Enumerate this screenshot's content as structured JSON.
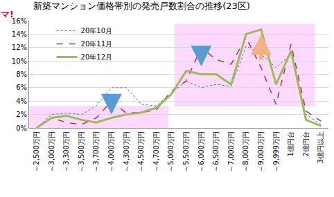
{
  "chart_data": {
    "type": "line",
    "title": "新築マンション価格帯別の発売戸数割合の推移(23区)",
    "annotations": [
      "マ!"
    ],
    "categories": [
      "～2,500万円",
      "～3,000万円",
      "～3,300万円",
      "～3,500万円",
      "～3,700万円",
      "～4,000万円",
      "～4,300万円",
      "～4,500万円",
      "～4,700万円",
      "～5,000万円",
      "～5,500万円",
      "～6,000万円",
      "～6,500万円",
      "～7,000万円",
      "～8,000万円",
      "～9,000万円",
      "～9,999万円",
      "1億円台",
      "2億円台",
      "3億円以上"
    ],
    "series": [
      {
        "name": "20年10月",
        "color": "#4472c4",
        "line_style": "dot",
        "values": [
          0,
          2.0,
          2.2,
          2.0,
          3.3,
          6.0,
          6.0,
          3.5,
          3.3,
          5.2,
          7.0,
          6.0,
          6.5,
          6.2,
          12.2,
          11.0,
          9.0,
          11.0,
          2.0,
          0.5
        ]
      },
      {
        "name": "20年11月",
        "color": "#c0304a",
        "line_style": "dash",
        "values": [
          0,
          1.5,
          0.8,
          0.5,
          1.5,
          4.0,
          2.2,
          2.3,
          2.7,
          5.5,
          7.0,
          12.0,
          10.2,
          9.5,
          13.5,
          9.0,
          3.5,
          12.5,
          2.5,
          1.0
        ]
      },
      {
        "name": "20年12月",
        "color": "#9bbb59",
        "line_style": "solid",
        "values": [
          0,
          1.5,
          1.8,
          1.2,
          0.8,
          1.5,
          2.0,
          2.3,
          3.0,
          5.0,
          8.5,
          8.0,
          8.0,
          6.5,
          14.0,
          14.7,
          6.5,
          11.5,
          1.2,
          0.3
        ]
      }
    ],
    "ylim": [
      0,
      16
    ],
    "yticks": [
      {
        "value": 0,
        "label": "0%"
      },
      {
        "value": 2,
        "label": "2%"
      },
      {
        "value": 4,
        "label": "4%"
      },
      {
        "value": 6,
        "label": "6%"
      },
      {
        "value": 8,
        "label": "8%"
      },
      {
        "value": 10,
        "label": "10%"
      },
      {
        "value": 12,
        "label": "12%"
      },
      {
        "value": 14,
        "label": "14%"
      },
      {
        "value": 16,
        "label": "16%"
      }
    ],
    "grid": true,
    "legend": "upper left"
  }
}
